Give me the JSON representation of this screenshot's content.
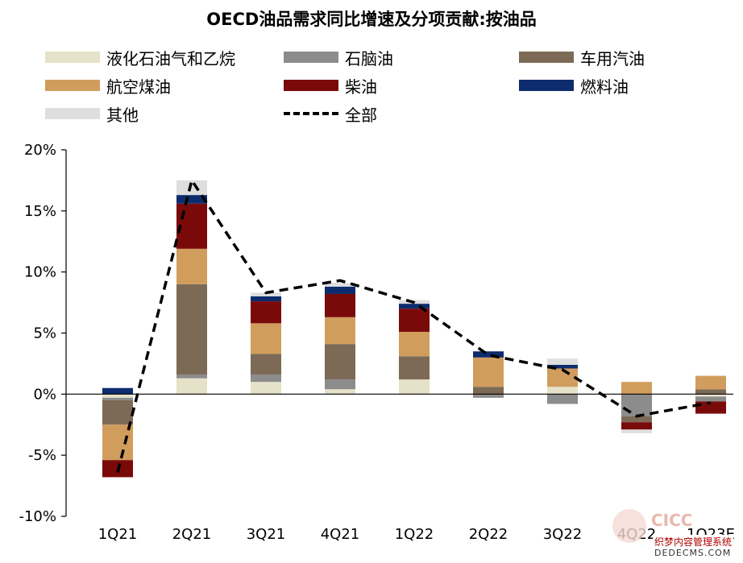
{
  "chart_data": {
    "type": "bar",
    "subtype": "stacked-bar-with-line",
    "title": "OECD油品需求同比增速及分项贡献:按油品",
    "categories": [
      "1Q21",
      "2Q21",
      "3Q21",
      "4Q21",
      "1Q22",
      "2Q22",
      "3Q22",
      "4Q22",
      "1Q23E"
    ],
    "ylim": [
      -10,
      20
    ],
    "yticks": [
      -10,
      -5,
      0,
      5,
      10,
      15,
      20
    ],
    "ytick_labels": [
      "-10%",
      "-5%",
      "0%",
      "5%",
      "10%",
      "15%",
      "20%"
    ],
    "xlabel": "",
    "ylabel": "",
    "series": [
      {
        "name": "液化石油气和乙烷",
        "color": "#e6e1c9",
        "values": [
          -0.3,
          1.3,
          1.0,
          0.4,
          1.2,
          0.0,
          0.6,
          0.0,
          -0.2
        ]
      },
      {
        "name": "石脑油",
        "color": "#8c8c8c",
        "values": [
          -0.2,
          0.3,
          0.6,
          0.8,
          0.0,
          -0.3,
          -0.8,
          -1.8,
          -0.4
        ]
      },
      {
        "name": "车用汽油",
        "color": "#7d6a56",
        "values": [
          -2.0,
          7.4,
          1.7,
          2.9,
          1.9,
          0.6,
          0.0,
          -0.5,
          0.4
        ]
      },
      {
        "name": "航空煤油",
        "color": "#d19d5d",
        "values": [
          -2.9,
          2.9,
          2.5,
          2.2,
          2.0,
          2.4,
          1.5,
          1.0,
          1.1
        ]
      },
      {
        "name": "柴油",
        "color": "#7a0a0a",
        "values": [
          -1.4,
          3.7,
          1.8,
          1.9,
          1.9,
          0.0,
          0.0,
          -0.6,
          -1.0
        ]
      },
      {
        "name": "燃料油",
        "color": "#0d2c6e",
        "values": [
          0.5,
          0.7,
          0.4,
          0.6,
          0.4,
          0.5,
          0.3,
          0.0,
          0.0
        ]
      },
      {
        "name": "其他",
        "color": "#dedede",
        "values": [
          0.0,
          1.2,
          0.3,
          0.3,
          0.3,
          0.0,
          0.5,
          -0.3,
          0.0
        ]
      }
    ],
    "line": {
      "name": "全部",
      "color": "#000000",
      "style": "dashed",
      "values": [
        -6.4,
        17.5,
        8.3,
        9.3,
        7.5,
        3.2,
        2.0,
        -1.8,
        -0.7
      ]
    },
    "legend_position": "top"
  },
  "watermark": {
    "brand": "CICC",
    "line1": "织梦内容管理系统",
    "line2": "DEDECMS.COM"
  }
}
